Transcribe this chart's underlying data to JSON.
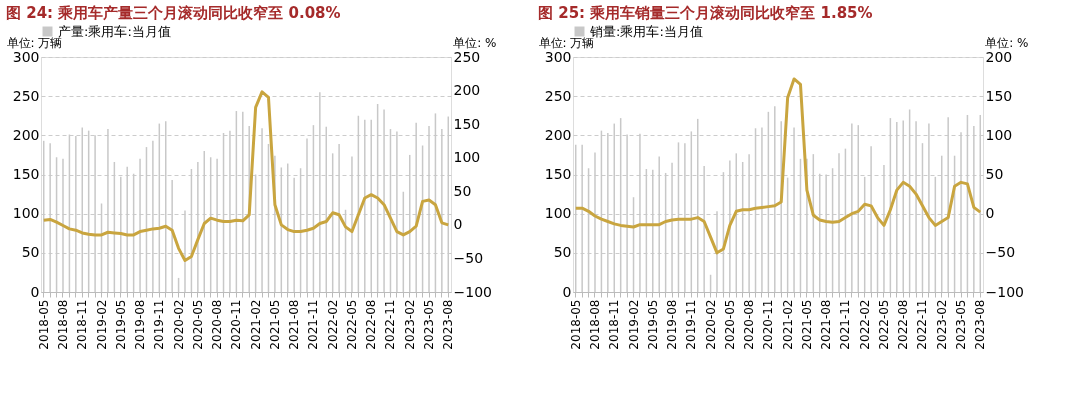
{
  "chart_data": [
    {
      "type": "bar",
      "title": "图 24:  乘用车产量三个月滚动同比收窄至 0.08%",
      "ylabel": "单位:  万辆",
      "y2label": "单位:  %",
      "categories": [
        "2018-05",
        null,
        null,
        "2018-08",
        null,
        null,
        "2018-11",
        null,
        null,
        "2019-02",
        null,
        null,
        "2019-05",
        null,
        null,
        "2019-08",
        null,
        null,
        "2019-11",
        null,
        null,
        "2020-02",
        null,
        null,
        "2020-05",
        null,
        null,
        "2020-08",
        null,
        null,
        "2020-11",
        null,
        null,
        "2021-02",
        null,
        null,
        "2021-05",
        null,
        null,
        "2021-08",
        null,
        null,
        "2021-11",
        null,
        null,
        "2022-02",
        null,
        null,
        "2022-05",
        null,
        null,
        "2022-08",
        null,
        null,
        "2022-11",
        null,
        null,
        "2023-02",
        null,
        null,
        "2023-05",
        null,
        null,
        "2023-08"
      ],
      "series": [
        {
          "name": "产量:乘用车:当月值",
          "color": "#c8c8c8",
          "values": [
            193,
            190,
            172,
            170,
            201,
            199,
            210,
            206,
            200,
            113,
            208,
            166,
            147,
            160,
            151,
            170,
            185,
            193,
            215,
            218,
            143,
            18,
            104,
            157,
            166,
            180,
            172,
            170,
            203,
            206,
            231,
            230,
            212,
            150,
            209,
            189,
            174,
            159,
            164,
            146,
            158,
            196,
            213,
            255,
            211,
            177,
            189,
            105,
            173,
            225,
            220,
            220,
            240,
            233,
            208,
            205,
            128,
            175,
            216,
            187,
            212,
            228,
            208,
            224
          ]
        },
        {
          "type": "line",
          "axis": "y2",
          "color": "#c9a53f",
          "values": [
            7,
            8,
            4,
            -1,
            -6,
            -8,
            -12,
            -14,
            -15,
            -15,
            -11,
            -12,
            -13,
            -15,
            -15,
            -10,
            -8,
            -6,
            -5,
            -2,
            -8,
            -35,
            -53,
            -47,
            -22,
            2,
            10,
            7,
            5,
            5,
            7,
            6,
            15,
            175,
            198,
            190,
            30,
            0,
            -7,
            -10,
            -10,
            -8,
            -5,
            2,
            5,
            18,
            15,
            -3,
            -10,
            15,
            40,
            45,
            40,
            30,
            10,
            -10,
            -15,
            -10,
            -2,
            35,
            37,
            30,
            3,
            0
          ]
        }
      ],
      "ylim": [
        0,
        300
      ],
      "yticks": [
        0,
        50,
        100,
        150,
        200,
        250,
        300
      ],
      "y2lim": [
        -100,
        250
      ],
      "y2ticks": [
        -100,
        -50,
        0,
        50,
        100,
        150,
        200,
        250
      ],
      "grid": "y",
      "legend": "top"
    },
    {
      "type": "bar",
      "title": "图 25:  乘用车销量三个月滚动同比收窄至 1.85%",
      "ylabel": "单位:  万辆",
      "y2label": "单位:  %",
      "categories": [
        "2018-05",
        null,
        null,
        "2018-08",
        null,
        null,
        "2018-11",
        null,
        null,
        "2019-02",
        null,
        null,
        "2019-05",
        null,
        null,
        "2019-08",
        null,
        null,
        "2019-11",
        null,
        null,
        "2020-02",
        null,
        null,
        "2020-05",
        null,
        null,
        "2020-08",
        null,
        null,
        "2020-11",
        null,
        null,
        "2021-02",
        null,
        null,
        "2021-05",
        null,
        null,
        "2021-08",
        null,
        null,
        "2021-11",
        null,
        null,
        "2022-02",
        null,
        null,
        "2022-05",
        null,
        null,
        "2022-08",
        null,
        null,
        "2022-11",
        null,
        null,
        "2023-02",
        null,
        null,
        "2023-05",
        null,
        null,
        "2023-08"
      ],
      "series": [
        {
          "name": "销量:乘用车:当月值",
          "color": "#c8c8c8",
          "values": [
            188,
            188,
            158,
            178,
            206,
            203,
            215,
            222,
            201,
            121,
            202,
            157,
            156,
            173,
            152,
            165,
            191,
            190,
            205,
            221,
            161,
            22,
            103,
            153,
            168,
            177,
            166,
            176,
            209,
            210,
            230,
            237,
            218,
            146,
            210,
            170,
            170,
            176,
            151,
            150,
            158,
            177,
            183,
            215,
            213,
            147,
            186,
            97,
            162,
            222,
            217,
            219,
            233,
            218,
            190,
            215,
            147,
            174,
            223,
            174,
            204,
            226,
            212,
            226
          ]
        },
        {
          "type": "line",
          "axis": "y2",
          "color": "#c9a53f",
          "values": [
            7,
            7,
            3,
            -3,
            -7,
            -10,
            -13,
            -15,
            -16,
            -17,
            -14,
            -14,
            -14,
            -14,
            -10,
            -8,
            -7,
            -7,
            -7,
            -5,
            -10,
            -30,
            -50,
            -45,
            -15,
            3,
            5,
            5,
            7,
            8,
            9,
            10,
            15,
            148,
            172,
            165,
            30,
            -2,
            -8,
            -10,
            -11,
            -10,
            -5,
            0,
            3,
            12,
            10,
            -5,
            -15,
            5,
            30,
            40,
            35,
            25,
            10,
            -5,
            -15,
            -10,
            -5,
            35,
            40,
            38,
            8,
            2
          ]
        }
      ],
      "ylim": [
        0,
        300
      ],
      "yticks": [
        0,
        50,
        100,
        150,
        200,
        250,
        300
      ],
      "y2lim": [
        -100,
        200
      ],
      "y2ticks": [
        -100,
        -50,
        0,
        50,
        100,
        150,
        200
      ],
      "grid": "y",
      "legend": "top"
    }
  ]
}
